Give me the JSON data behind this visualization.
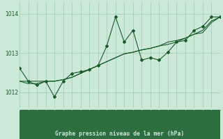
{
  "title": "Graphe pression niveau de la mer (hPa)",
  "bg_color": "#cce8d8",
  "plot_bg_color": "#cce8d8",
  "bottom_bar_color": "#2d6e3e",
  "grid_color": "#99ccaa",
  "line_color": "#1a5c2a",
  "text_color": "#1a5c2a",
  "bottom_text_color": "#cce8d8",
  "xlim": [
    0,
    23
  ],
  "ylim": [
    1011.55,
    1014.3
  ],
  "yticks": [
    1012,
    1013,
    1014
  ],
  "xticks": [
    0,
    1,
    2,
    3,
    4,
    5,
    6,
    7,
    8,
    9,
    10,
    11,
    12,
    13,
    14,
    15,
    16,
    17,
    18,
    19,
    20,
    21,
    22,
    23
  ],
  "series1": [
    1012.62,
    1012.28,
    1012.18,
    1012.28,
    1011.88,
    1012.28,
    1012.48,
    1012.52,
    1012.58,
    1012.68,
    1013.18,
    1013.92,
    1013.28,
    1013.58,
    1012.82,
    1012.88,
    1012.82,
    1013.02,
    1013.28,
    1013.32,
    1013.58,
    1013.68,
    1013.92,
    1013.92
  ],
  "series2": [
    1012.28,
    1012.22,
    1012.22,
    1012.28,
    1012.28,
    1012.32,
    1012.38,
    1012.48,
    1012.58,
    1012.68,
    1012.78,
    1012.88,
    1012.98,
    1013.02,
    1013.08,
    1013.12,
    1013.18,
    1013.28,
    1013.32,
    1013.38,
    1013.48,
    1013.58,
    1013.82,
    1013.92
  ],
  "series3": [
    1012.28,
    1012.28,
    1012.28,
    1012.28,
    1012.28,
    1012.32,
    1012.38,
    1012.48,
    1012.58,
    1012.68,
    1012.78,
    1012.88,
    1012.98,
    1013.02,
    1013.08,
    1013.12,
    1013.18,
    1013.22,
    1013.28,
    1013.38,
    1013.48,
    1013.52,
    1013.78,
    1013.92
  ]
}
